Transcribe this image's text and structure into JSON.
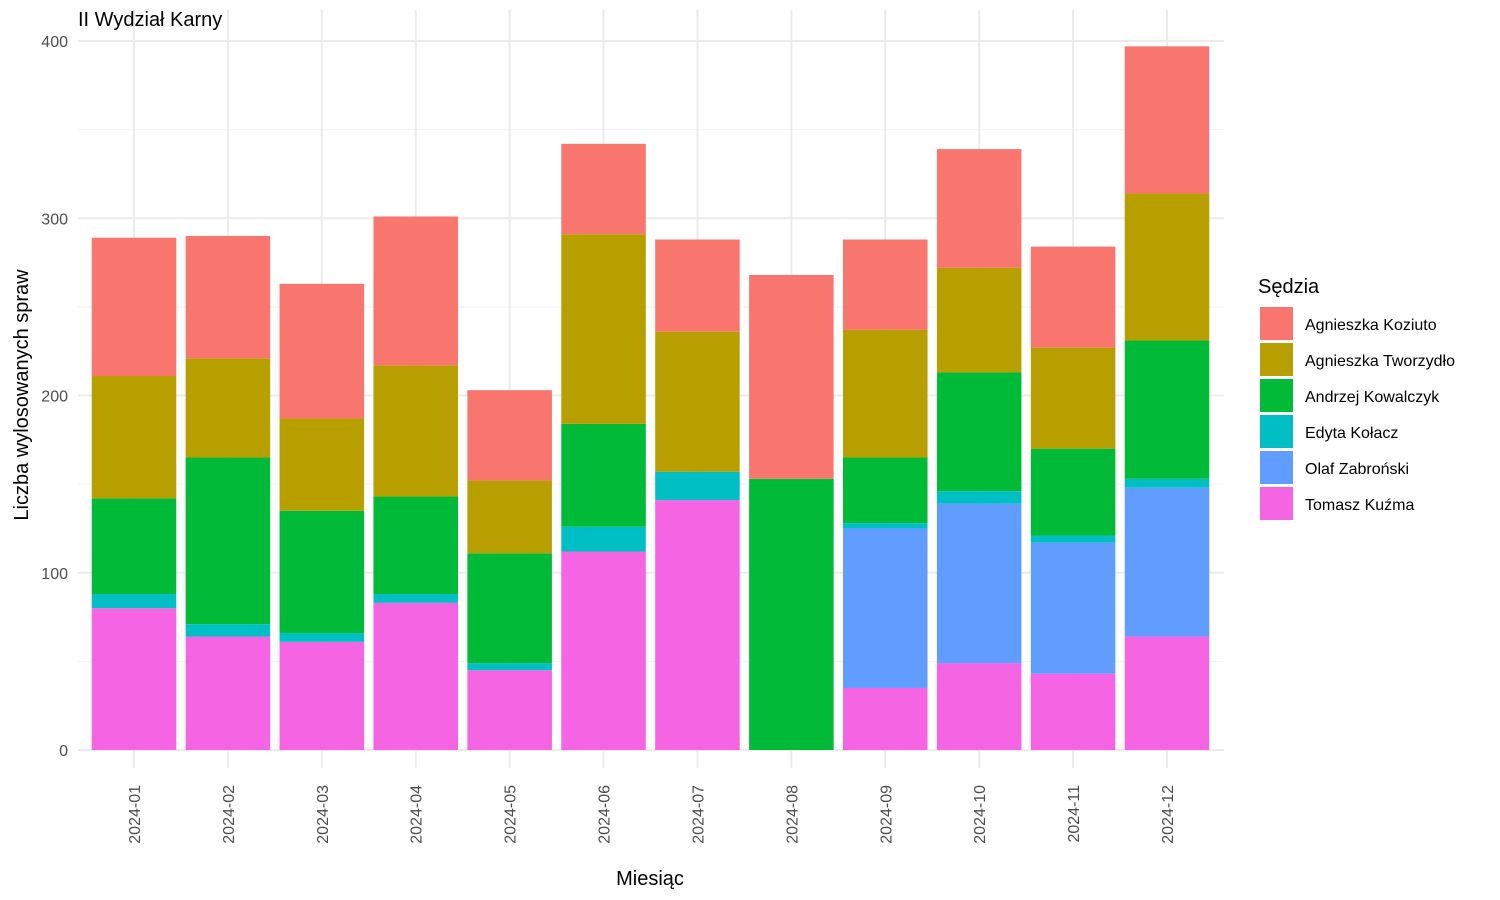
{
  "chart_data": {
    "type": "bar",
    "stacked": true,
    "title": "II Wydział Karny",
    "xlabel": "Miesiąc",
    "ylabel": "Liczba wylosowanych spraw",
    "ylim": [
      0,
      400
    ],
    "yticks": [
      0,
      100,
      200,
      300,
      400
    ],
    "grid": true,
    "legend_position": "right",
    "legend_title": "Sędzia",
    "categories": [
      "2024-01",
      "2024-02",
      "2024-03",
      "2024-04",
      "2024-05",
      "2024-06",
      "2024-07",
      "2024-08",
      "2024-09",
      "2024-10",
      "2024-11",
      "2024-12"
    ],
    "series": [
      {
        "name": "Agnieszka Koziuto",
        "color": "#F8766D",
        "values": [
          78,
          69,
          76,
          84,
          51,
          51,
          52,
          115,
          51,
          67,
          57,
          83
        ]
      },
      {
        "name": "Agnieszka Tworzydło",
        "color": "#B79F00",
        "values": [
          69,
          56,
          52,
          74,
          41,
          107,
          79,
          0,
          72,
          59,
          57,
          83
        ]
      },
      {
        "name": "Andrzej Kowalczyk",
        "color": "#00BA38",
        "values": [
          54,
          94,
          69,
          55,
          62,
          58,
          0,
          153,
          37,
          67,
          49,
          78
        ]
      },
      {
        "name": "Edyta Kołacz",
        "color": "#00BFC4",
        "values": [
          8,
          7,
          5,
          5,
          4,
          14,
          16,
          0,
          3,
          7,
          4,
          5
        ]
      },
      {
        "name": "Olaf Zabroński",
        "color": "#619CFF",
        "values": [
          0,
          0,
          0,
          0,
          0,
          0,
          0,
          0,
          90,
          90,
          74,
          84
        ]
      },
      {
        "name": "Tomasz Kuźma",
        "color": "#F564E3",
        "values": [
          80,
          64,
          61,
          83,
          45,
          112,
          141,
          0,
          35,
          49,
          43,
          64
        ]
      }
    ]
  }
}
